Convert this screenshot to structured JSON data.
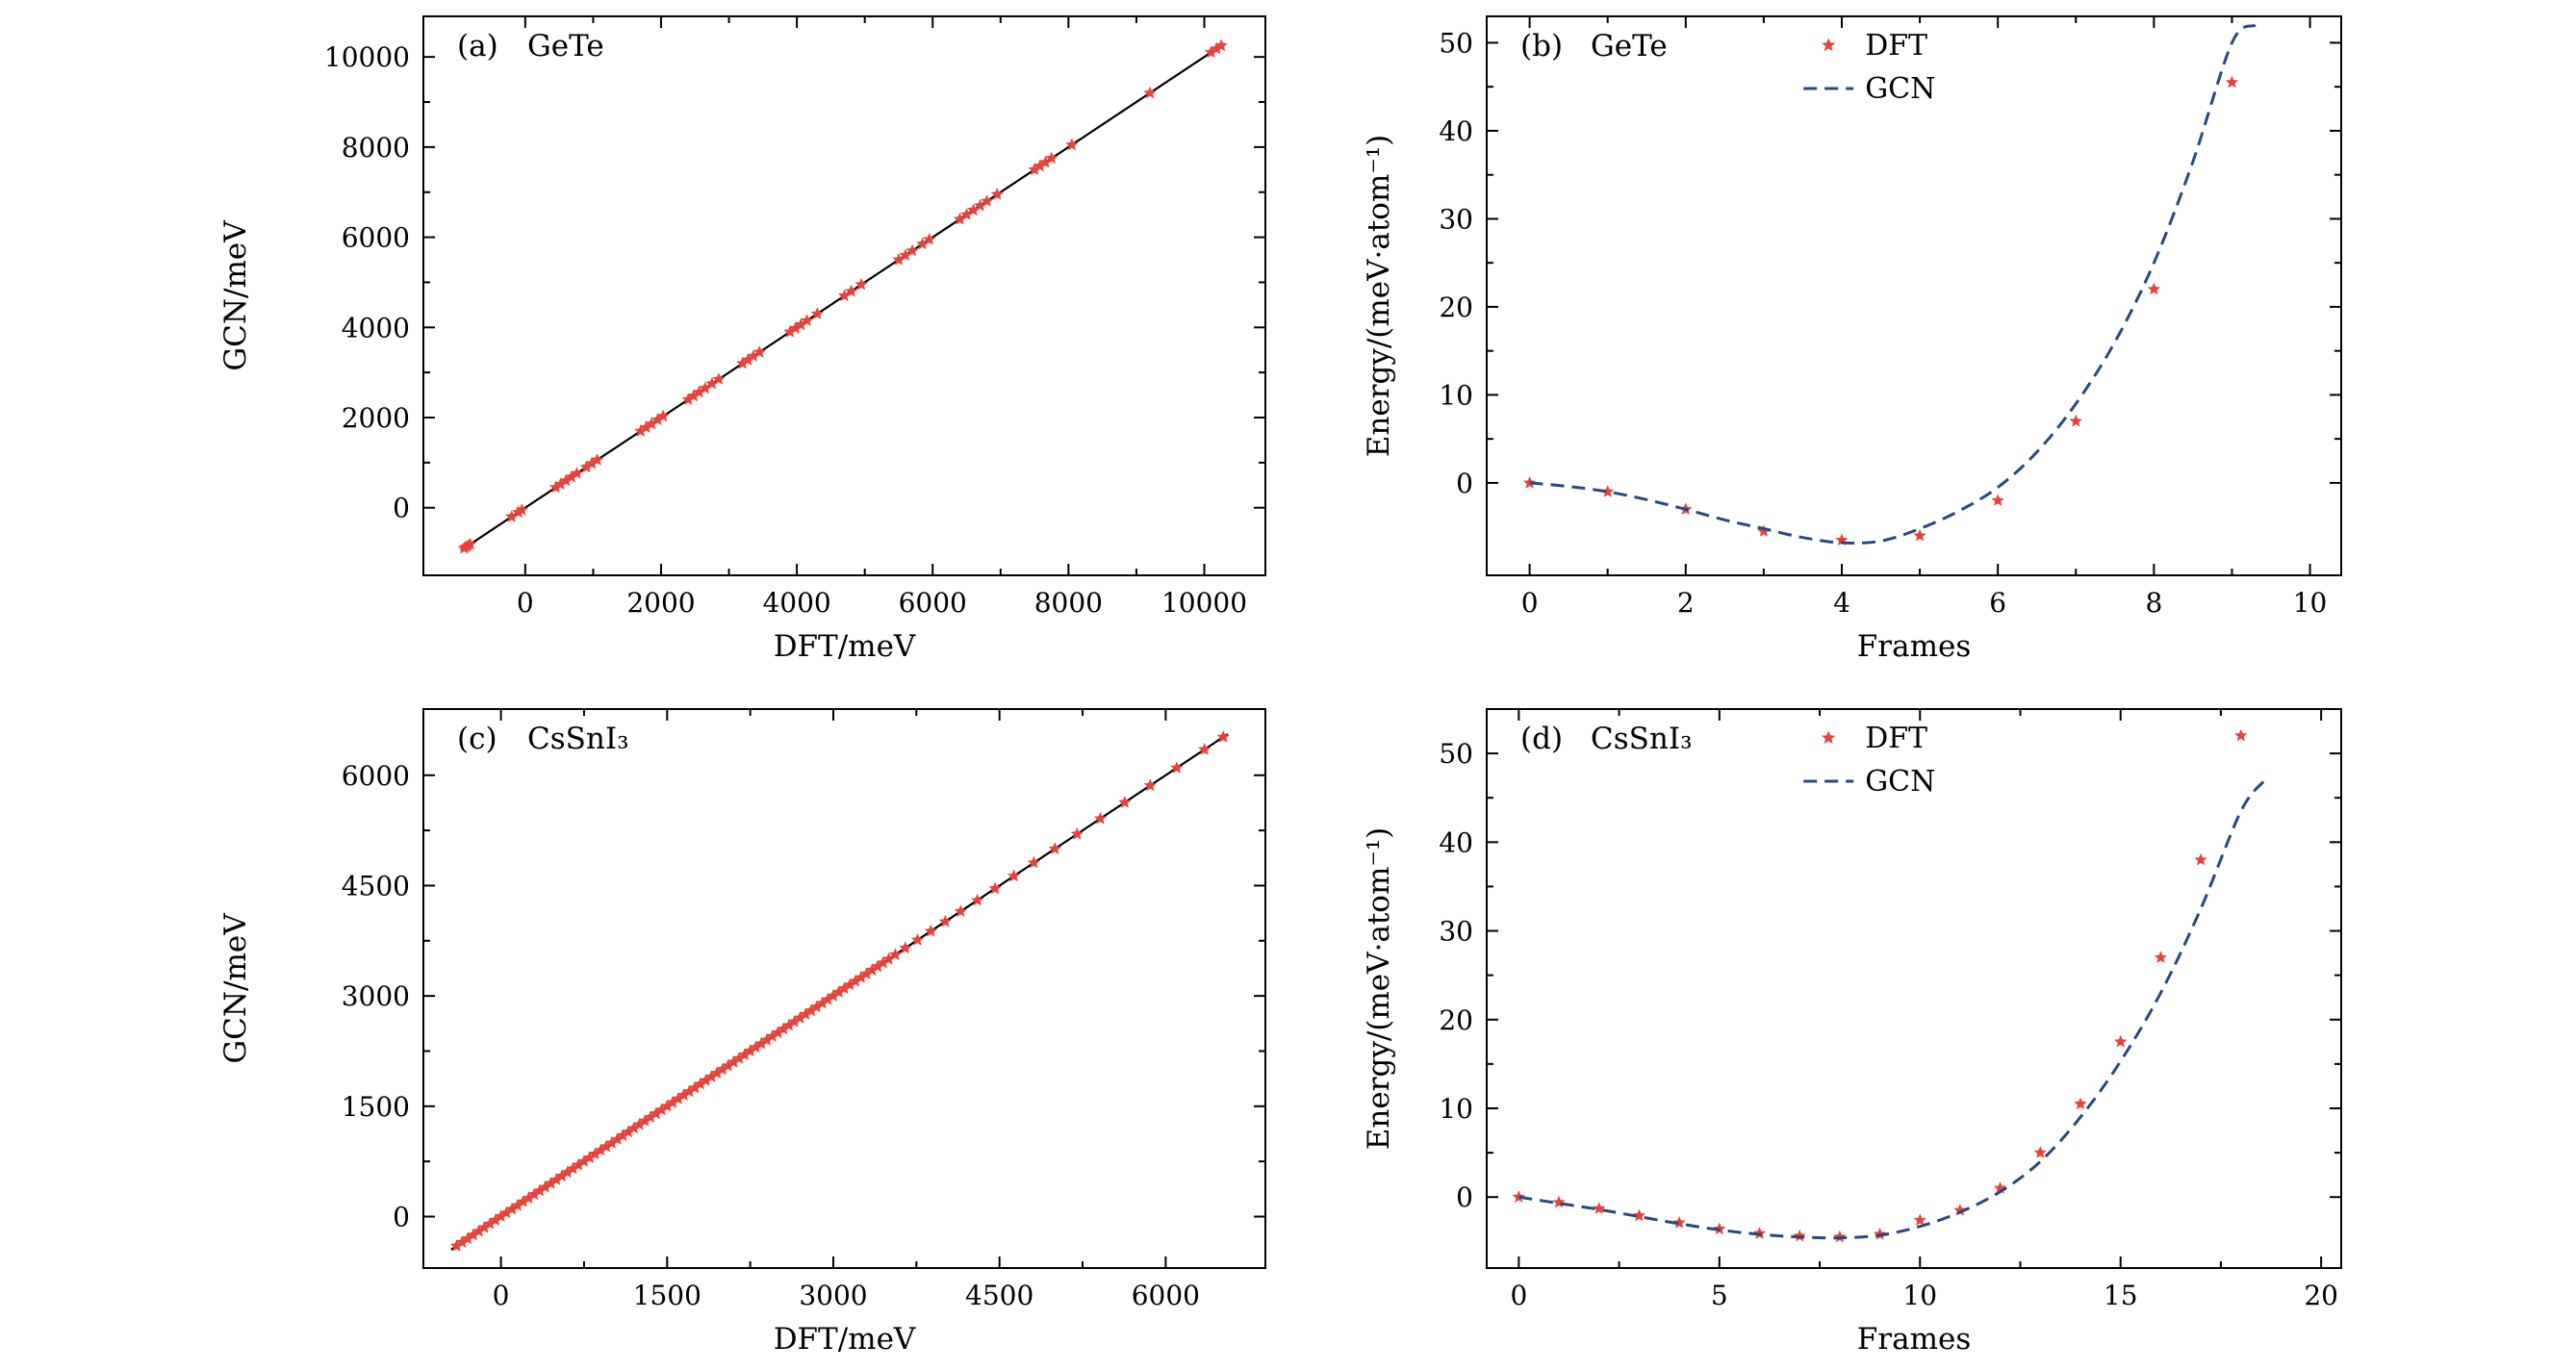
{
  "figure": {
    "panels": [
      "a",
      "b",
      "c",
      "d"
    ]
  },
  "colors": {
    "dft_marker": "#e8423a",
    "gcn_line": "#27497e",
    "parity_line": "#000000",
    "axis": "#000000",
    "text": "#000000",
    "background": "#ffffff"
  },
  "chart_data": [
    {
      "id": "a",
      "type": "scatter",
      "panel_label": "(a)",
      "title": "GeTe",
      "xlabel": "DFT/meV",
      "ylabel": "GCN/meV",
      "xlim": [
        -1500,
        10900
      ],
      "ylim": [
        -1500,
        10900
      ],
      "xticks": [
        0,
        2000,
        4000,
        6000,
        8000,
        10000
      ],
      "yticks": [
        0,
        2000,
        4000,
        6000,
        8000,
        10000
      ],
      "grid": false,
      "parity_line": {
        "x": [
          -950,
          10300
        ],
        "color_key": "parity_line",
        "note": "y = x identity line"
      },
      "series": [
        {
          "name": "DFT",
          "marker": "star",
          "color_key": "dft_marker",
          "parity": true,
          "note": "points lie on the y = x line (GCN prediction equals DFT value)",
          "values": [
            -900,
            -870,
            -840,
            -810,
            -200,
            -100,
            -50,
            450,
            520,
            600,
            680,
            760,
            900,
            980,
            1060,
            1700,
            1780,
            1860,
            1950,
            2030,
            2400,
            2480,
            2560,
            2650,
            2750,
            2850,
            3200,
            3280,
            3360,
            3450,
            3900,
            3980,
            4060,
            4150,
            4300,
            4700,
            4800,
            4950,
            5500,
            5600,
            5700,
            5850,
            5950,
            6400,
            6500,
            6600,
            6700,
            6800,
            6950,
            7500,
            7580,
            7660,
            7750,
            8050,
            9200,
            10100,
            10180,
            10250
          ]
        }
      ],
      "legend": null
    },
    {
      "id": "b",
      "type": "line+scatter",
      "panel_label": "(b)",
      "title": "GeTe",
      "xlabel": "Frames",
      "ylabel": "Energy/(meV·atom⁻¹)",
      "xlim": [
        -0.55,
        10.4
      ],
      "ylim": [
        -10.5,
        53
      ],
      "xticks": [
        0,
        2,
        4,
        6,
        8,
        10
      ],
      "yticks": [
        0,
        10,
        20,
        30,
        40,
        50
      ],
      "grid": false,
      "series": [
        {
          "name": "DFT",
          "marker": "star",
          "color_key": "dft_marker",
          "x": [
            0,
            1,
            2,
            3,
            4,
            5,
            6,
            7,
            8,
            9
          ],
          "y": [
            0,
            -1,
            -3,
            -5.5,
            -6.5,
            -6,
            -2,
            7,
            22,
            45.5
          ]
        },
        {
          "name": "GCN",
          "line": "dashed",
          "color_key": "gcn_line",
          "x": [
            0,
            0.5,
            1,
            1.5,
            2,
            2.5,
            3,
            3.5,
            4,
            4.5,
            5,
            5.5,
            6,
            6.5,
            7,
            7.5,
            8,
            8.5,
            9,
            9.3
          ],
          "y": [
            0,
            -0.4,
            -1,
            -1.9,
            -3,
            -4.2,
            -5.2,
            -6.2,
            -6.8,
            -6.6,
            -5.2,
            -3.2,
            -0.5,
            3.5,
            9,
            16,
            25,
            36.5,
            50,
            52
          ]
        }
      ],
      "legend": {
        "entries": [
          "DFT",
          "GCN"
        ],
        "position": "upper-center"
      }
    },
    {
      "id": "c",
      "type": "scatter",
      "panel_label": "(c)",
      "title": "CsSnI₃",
      "xlabel": "DFT/meV",
      "ylabel": "GCN/meV",
      "xlim": [
        -700,
        6900
      ],
      "ylim": [
        -700,
        6900
      ],
      "xticks": [
        0,
        1500,
        3000,
        4500,
        6000
      ],
      "yticks": [
        0,
        1500,
        3000,
        4500,
        6000
      ],
      "grid": false,
      "parity_line": {
        "x": [
          -450,
          6560
        ],
        "color_key": "parity_line",
        "note": "y = x identity line"
      },
      "series": [
        {
          "name": "DFT",
          "marker": "star",
          "color_key": "dft_marker",
          "parity": true,
          "note": "dense band of points on the y = x line, sparser above 3500 meV",
          "values": [
            -400,
            -350,
            -300,
            -250,
            -200,
            -150,
            -100,
            -50,
            0,
            50,
            100,
            150,
            200,
            250,
            300,
            350,
            400,
            450,
            500,
            550,
            600,
            650,
            700,
            750,
            800,
            850,
            900,
            950,
            1000,
            1050,
            1100,
            1150,
            1200,
            1250,
            1300,
            1350,
            1400,
            1450,
            1500,
            1550,
            1600,
            1650,
            1700,
            1750,
            1800,
            1850,
            1900,
            1950,
            2000,
            2050,
            2100,
            2150,
            2200,
            2250,
            2300,
            2350,
            2400,
            2450,
            2500,
            2550,
            2600,
            2650,
            2700,
            2750,
            2800,
            2850,
            2900,
            2950,
            3000,
            3050,
            3100,
            3150,
            3200,
            3250,
            3300,
            3350,
            3400,
            3450,
            3500,
            3560,
            3650,
            3760,
            3880,
            4010,
            4150,
            4300,
            4460,
            4630,
            4810,
            5000,
            5200,
            5410,
            5630,
            5860,
            6100,
            6350,
            6520
          ]
        }
      ],
      "legend": null
    },
    {
      "id": "d",
      "type": "line+scatter",
      "panel_label": "(d)",
      "title": "CsSnI₃",
      "xlabel": "Frames",
      "ylabel": "Energy/(meV·atom⁻¹)",
      "xlim": [
        -0.8,
        20.5
      ],
      "ylim": [
        -8,
        55
      ],
      "xticks": [
        0,
        5,
        10,
        15,
        20
      ],
      "yticks": [
        0,
        10,
        20,
        30,
        40,
        50
      ],
      "grid": false,
      "series": [
        {
          "name": "DFT",
          "marker": "star",
          "color_key": "dft_marker",
          "x": [
            0,
            1,
            2,
            3,
            4,
            5,
            6,
            7,
            8,
            9,
            10,
            11,
            12,
            13,
            14,
            15,
            16,
            17,
            18
          ],
          "y": [
            0,
            -0.6,
            -1.3,
            -2.1,
            -2.9,
            -3.6,
            -4.1,
            -4.4,
            -4.5,
            -4.2,
            -2.6,
            -1.5,
            1.0,
            5.0,
            10.5,
            17.5,
            27,
            38,
            52
          ]
        },
        {
          "name": "GCN",
          "line": "dashed",
          "color_key": "gcn_line",
          "x": [
            0,
            1,
            2,
            3,
            4,
            5,
            6,
            7,
            8,
            9,
            10,
            11,
            12,
            13,
            14,
            15,
            16,
            17,
            18,
            18.6
          ],
          "y": [
            0,
            -0.7,
            -1.4,
            -2.2,
            -3.0,
            -3.7,
            -4.2,
            -4.5,
            -4.6,
            -4.3,
            -3.3,
            -1.7,
            0.6,
            4.0,
            9.0,
            15.3,
            23.0,
            32.5,
            43.5,
            47
          ]
        }
      ],
      "legend": {
        "entries": [
          "DFT",
          "GCN"
        ],
        "position": "upper-center"
      }
    }
  ]
}
